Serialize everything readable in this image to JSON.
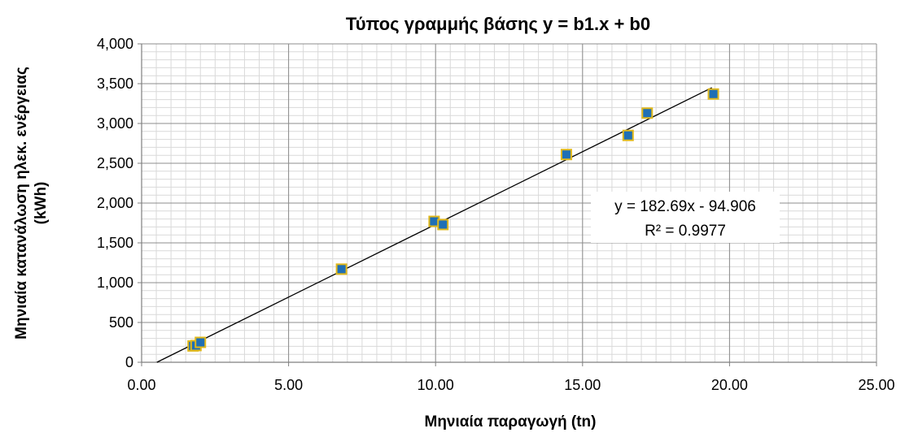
{
  "chart_data": {
    "type": "scatter",
    "title": "Τύπος γραμμής βάσης y = b1.x + b0",
    "xlabel": "Μηνιαία παραγωγή (tn)",
    "ylabel_line1": "Μηνιαία κατανάλωση ηλεκ. ενέργειας",
    "ylabel_line2": "(kWh)",
    "xlim": [
      0,
      25
    ],
    "ylim": [
      0,
      4000
    ],
    "x_ticks": [
      "0.00",
      "5.00",
      "10.00",
      "15.00",
      "20.00",
      "25.00"
    ],
    "y_ticks": [
      "0",
      "500",
      "1,000",
      "1,500",
      "2,000",
      "2,500",
      "3,000",
      "3,500",
      "4,000"
    ],
    "grid": true,
    "legend": "none",
    "series": [
      {
        "marker": "square",
        "color": "#1f6fb5",
        "edge_color": "#e0b81c",
        "points": [
          {
            "x": 1.75,
            "y": 205
          },
          {
            "x": 1.85,
            "y": 210
          },
          {
            "x": 2.0,
            "y": 250
          },
          {
            "x": 6.8,
            "y": 1170
          },
          {
            "x": 9.95,
            "y": 1770
          },
          {
            "x": 10.25,
            "y": 1730
          },
          {
            "x": 14.45,
            "y": 2610
          },
          {
            "x": 16.55,
            "y": 2850
          },
          {
            "x": 17.2,
            "y": 3130
          },
          {
            "x": 19.45,
            "y": 3370
          }
        ]
      }
    ],
    "trendline": {
      "slope": 182.69,
      "intercept": -94.906,
      "x_range": [
        0.52,
        19.4
      ],
      "color": "#000000",
      "equation": "y = 182.69x - 94.906",
      "r_squared": "R² = 0.9977"
    }
  }
}
